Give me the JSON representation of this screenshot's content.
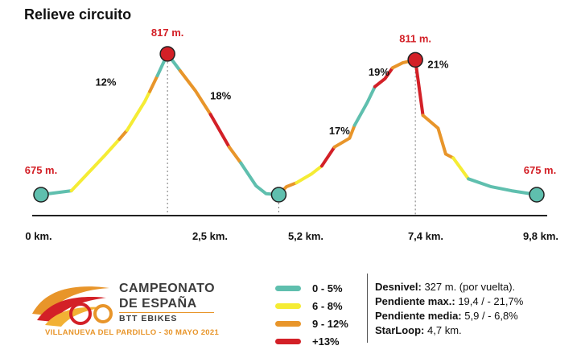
{
  "chart_data": {
    "type": "area",
    "title": "Relieve circuito",
    "colors": {
      "green": "#5fbfae",
      "yellow": "#f5ec34",
      "orange": "#e8952a",
      "red": "#d32027",
      "baseline": "#222222",
      "elev_label": "#d32027"
    },
    "x_ticks": [
      "0 km.",
      "2,5 km.",
      "5,2 km.",
      "7,4 km.",
      "9,8 km."
    ],
    "x_tick_values": [
      0,
      2.5,
      5.2,
      7.4,
      9.8
    ],
    "ylim": [
      660,
      830
    ],
    "elevation_labels": [
      {
        "text": "675 m.",
        "km": 0,
        "elev": 675
      },
      {
        "text": "817 m.",
        "km": 2.5,
        "elev": 817
      },
      {
        "text": "811 m.",
        "km": 7.4,
        "elev": 811
      },
      {
        "text": "675 m.",
        "km": 9.8,
        "elev": 675
      }
    ],
    "grade_labels": [
      {
        "text": "12%",
        "km": 1.28,
        "elev": 785
      },
      {
        "text": "18%",
        "km": 3.55,
        "elev": 771
      },
      {
        "text": "17%",
        "km": 5.9,
        "elev": 736
      },
      {
        "text": "19%",
        "km": 6.68,
        "elev": 795
      },
      {
        "text": "21%",
        "km": 7.85,
        "elev": 803
      }
    ],
    "segments": [
      {
        "cat": "green",
        "points": [
          [
            0,
            675
          ],
          [
            0.6,
            679
          ]
        ]
      },
      {
        "cat": "yellow",
        "points": [
          [
            0.6,
            679
          ],
          [
            1.25,
            714
          ],
          [
            1.55,
            731
          ]
        ]
      },
      {
        "cat": "orange",
        "points": [
          [
            1.55,
            731
          ],
          [
            1.7,
            740
          ]
        ]
      },
      {
        "cat": "yellow",
        "points": [
          [
            1.7,
            740
          ],
          [
            2.05,
            769
          ],
          [
            2.15,
            779
          ]
        ]
      },
      {
        "cat": "orange",
        "points": [
          [
            2.15,
            779
          ],
          [
            2.3,
            795
          ]
        ]
      },
      {
        "cat": "green",
        "points": [
          [
            2.3,
            795
          ],
          [
            2.5,
            817
          ]
        ]
      },
      {
        "cat": "green",
        "points": [
          [
            2.5,
            817
          ],
          [
            2.75,
            800
          ]
        ]
      },
      {
        "cat": "orange",
        "points": [
          [
            2.75,
            800
          ],
          [
            3.05,
            780
          ],
          [
            3.35,
            756
          ]
        ]
      },
      {
        "cat": "red",
        "points": [
          [
            3.35,
            756
          ],
          [
            3.72,
            723
          ]
        ]
      },
      {
        "cat": "orange",
        "points": [
          [
            3.72,
            723
          ],
          [
            3.95,
            707
          ]
        ]
      },
      {
        "cat": "green",
        "points": [
          [
            3.95,
            707
          ],
          [
            4.25,
            684
          ],
          [
            4.45,
            676
          ],
          [
            4.7,
            675
          ]
        ]
      },
      {
        "cat": "orange",
        "points": [
          [
            4.7,
            675
          ],
          [
            4.85,
            683
          ],
          [
            5.05,
            687
          ]
        ]
      },
      {
        "cat": "yellow",
        "points": [
          [
            5.05,
            687
          ],
          [
            5.35,
            696
          ],
          [
            5.55,
            704
          ]
        ]
      },
      {
        "cat": "red",
        "points": [
          [
            5.55,
            704
          ],
          [
            5.8,
            723
          ]
        ]
      },
      {
        "cat": "orange",
        "points": [
          [
            5.8,
            723
          ],
          [
            6.1,
            732
          ],
          [
            6.2,
            745
          ]
        ]
      },
      {
        "cat": "green",
        "points": [
          [
            6.2,
            745
          ],
          [
            6.45,
            768
          ],
          [
            6.6,
            784
          ]
        ]
      },
      {
        "cat": "red",
        "points": [
          [
            6.6,
            784
          ],
          [
            6.8,
            792
          ],
          [
            6.95,
            803
          ]
        ]
      },
      {
        "cat": "orange",
        "points": [
          [
            6.95,
            803
          ],
          [
            7.15,
            808
          ],
          [
            7.4,
            811
          ]
        ]
      },
      {
        "cat": "red",
        "points": [
          [
            7.4,
            811
          ],
          [
            7.55,
            755
          ]
        ]
      },
      {
        "cat": "orange",
        "points": [
          [
            7.55,
            755
          ],
          [
            7.85,
            742
          ],
          [
            8.0,
            716
          ],
          [
            8.15,
            712
          ]
        ]
      },
      {
        "cat": "yellow",
        "points": [
          [
            8.15,
            712
          ],
          [
            8.45,
            691
          ]
        ]
      },
      {
        "cat": "green",
        "points": [
          [
            8.45,
            691
          ],
          [
            8.9,
            683
          ],
          [
            9.3,
            679
          ],
          [
            9.8,
            675
          ]
        ]
      }
    ],
    "peaks": [
      {
        "km": 0,
        "elev": 675,
        "color": "green"
      },
      {
        "km": 2.5,
        "elev": 817,
        "color": "red"
      },
      {
        "km": 4.7,
        "elev": 675,
        "color": "green"
      },
      {
        "km": 7.4,
        "elev": 811,
        "color": "red"
      },
      {
        "km": 9.8,
        "elev": 675,
        "color": "green"
      }
    ],
    "dashed_guides_km": [
      2.5,
      4.7,
      7.4
    ]
  },
  "legend": [
    {
      "label": "0 - 5%",
      "color": "#5fbfae"
    },
    {
      "label": "6 - 8%",
      "color": "#f5ec34"
    },
    {
      "label": "9 - 12%",
      "color": "#e8952a"
    },
    {
      "label": "+13%",
      "color": "#d32027"
    }
  ],
  "stats": [
    {
      "key": "Desnivel:",
      "value": "327 m. (por vuelta)."
    },
    {
      "key": "Pendiente max.:",
      "value": "19,4 / - 21,7%"
    },
    {
      "key": "Pendiente media:",
      "value": "5,9 / - 6,8%"
    },
    {
      "key": "StarLoop:",
      "value": "4,7 km."
    }
  ],
  "logo": {
    "line1": "CAMPEONATO",
    "line2": "DE ESPAÑA",
    "line3": "BTT EBIKES",
    "line4": "VILLANUEVA DEL PARDILLO - 30 MAYO 2021"
  }
}
